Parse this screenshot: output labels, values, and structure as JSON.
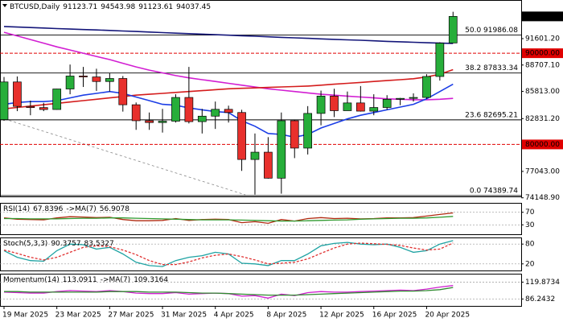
{
  "chart_data": [
    {
      "type": "candlestick",
      "title": "BTCUSD,Daily",
      "categories": [
        "19 Mar 2025",
        null,
        null,
        null,
        "23 Mar 2025",
        null,
        null,
        null,
        "27 Mar 2025",
        null,
        null,
        null,
        "31 Mar 2025",
        null,
        null,
        null,
        "4 Apr 2025",
        null,
        null,
        null,
        "8 Apr 2025",
        null,
        null,
        null,
        "12 Apr 2025",
        null,
        null,
        null,
        "16 Apr 2025",
        null,
        null,
        null,
        "20 Apr 2025",
        null,
        null
      ],
      "open": [
        82720,
        86850,
        84170,
        84040,
        83830,
        86080,
        87500,
        87400,
        86900,
        87230,
        84350,
        82600,
        82400,
        82550,
        85150,
        82500,
        83100,
        83850,
        83500,
        78350,
        79150,
        76300,
        82600,
        79600,
        83400,
        85300,
        83700,
        84550,
        83650,
        84050,
        84950,
        85050,
        85150,
        87450,
        91123.71
      ],
      "high": [
        87400,
        87450,
        84800,
        84560,
        86100,
        88760,
        88500,
        88300,
        87800,
        87500,
        84600,
        83500,
        83900,
        85500,
        88500,
        83900,
        84700,
        84250,
        83800,
        81200,
        80800,
        83500,
        82700,
        84200,
        85900,
        86100,
        85800,
        86400,
        85500,
        85400,
        85100,
        85600,
        87700,
        91200,
        94543.98
      ],
      "low": [
        82600,
        83650,
        83200,
        83650,
        83800,
        85500,
        86300,
        85870,
        85800,
        83600,
        81600,
        81600,
        81300,
        82400,
        82300,
        81200,
        81700,
        82400,
        77100,
        74500,
        76250,
        74600,
        78500,
        78900,
        82100,
        83000,
        83700,
        83600,
        83200,
        83800,
        84300,
        84700,
        85000,
        87000,
        91123.61
      ],
      "close": [
        86850,
        84170,
        84040,
        83830,
        86080,
        87500,
        87400,
        86900,
        87230,
        84350,
        82600,
        82400,
        82550,
        85150,
        82500,
        83100,
        83850,
        83500,
        78350,
        79150,
        76300,
        82600,
        79600,
        83400,
        85300,
        83700,
        84550,
        83650,
        84050,
        84950,
        85050,
        85150,
        87450,
        91100,
        94037.45
      ],
      "up_color": "#27ae3a",
      "down_color": "#e8302c",
      "overlays": [
        {
          "color": "#14167a",
          "values": [
            92930,
            92870,
            92820,
            92760,
            92700,
            92650,
            92600,
            92550,
            92500,
            92440,
            92380,
            92320,
            92260,
            92200,
            92150,
            92090,
            92030,
            91980,
            91920,
            91860,
            91800,
            91740,
            91690,
            91630,
            91570,
            91520,
            91470,
            91420,
            91360,
            91300,
            91250,
            91200,
            91150,
            91100,
            91080
          ]
        },
        {
          "color": "#d21ed2",
          "values": [
            92300,
            91900,
            91500,
            91100,
            90700,
            90350,
            90000,
            89650,
            89300,
            88900,
            88500,
            88150,
            87850,
            87550,
            87300,
            87100,
            86900,
            86700,
            86500,
            86300,
            86100,
            85950,
            85800,
            85650,
            85500,
            85400,
            85300,
            85200,
            85100,
            85000,
            84950,
            84900,
            84900,
            84950,
            85050
          ]
        },
        {
          "color": "#d41c1c",
          "values": [
            83900,
            84050,
            84200,
            84350,
            84500,
            84650,
            84800,
            84950,
            85100,
            85250,
            85400,
            85500,
            85600,
            85700,
            85800,
            85900,
            86000,
            86100,
            86150,
            86200,
            86250,
            86300,
            86350,
            86400,
            86500,
            86600,
            86700,
            86800,
            86900,
            87000,
            87100,
            87200,
            87400,
            87700,
            88200
          ]
        },
        {
          "color": "#1c3ee6",
          "values": [
            84400,
            84600,
            84700,
            84700,
            84800,
            85100,
            85400,
            85600,
            85800,
            85600,
            85200,
            84800,
            84400,
            84300,
            84000,
            83800,
            83600,
            83500,
            82600,
            82000,
            81200,
            81100,
            80800,
            81100,
            81800,
            82300,
            82800,
            83200,
            83500,
            83800,
            84100,
            84400,
            85000,
            85800,
            86600
          ]
        }
      ],
      "levels": [
        {
          "value": 90000,
          "label": "90000.00"
        },
        {
          "value": 80000,
          "label": "80000.00"
        }
      ],
      "level_color": "#e00000",
      "fibs": [
        {
          "value": 91986.08,
          "label": "50.0 91986.08"
        },
        {
          "value": 87833.34,
          "label": "38.2 87833.34"
        },
        {
          "value": 82695.21,
          "label": "23.6 82695.21"
        },
        {
          "value": 74389.74,
          "label": "0.0 74389.74"
        }
      ],
      "ylim": [
        74300,
        95835
      ],
      "yticks": [
        {
          "value": 91601.2,
          "label": "91601.20"
        },
        {
          "value": 88707.1,
          "label": "88707.10"
        },
        {
          "value": 85813,
          "label": "85813.00"
        },
        {
          "value": 82831.2,
          "label": "82831.20"
        },
        {
          "value": 77043,
          "label": "77043.00"
        },
        {
          "value": 74148.9,
          "label": "74148.90"
        }
      ]
    },
    {
      "type": "line",
      "title": "RSI(14)",
      "ylim": [
        0,
        100
      ],
      "yticks": [
        30,
        70
      ],
      "series": [
        {
          "color": "#b02a10",
          "values": [
            52,
            48,
            47,
            46,
            52,
            56,
            55,
            53,
            54,
            47,
            43,
            43,
            44,
            50,
            44,
            47,
            48,
            47,
            37,
            40,
            35,
            47,
            42,
            50,
            53,
            50,
            51,
            49,
            50,
            52,
            52,
            53,
            58,
            63,
            67.8396
          ]
        },
        {
          "name": "->MA(7)",
          "color": "#2f9a2f",
          "values": [
            50,
            50,
            49,
            49,
            49,
            50,
            51,
            51,
            52,
            52,
            51,
            50,
            49,
            48,
            47,
            46,
            46,
            46,
            45,
            44,
            43,
            42,
            42,
            43,
            44,
            45,
            46,
            48,
            49,
            50,
            51,
            51,
            52,
            54,
            56.9078
          ]
        }
      ]
    },
    {
      "type": "line",
      "title": "Stoch(5,3,3)",
      "ylim": [
        0,
        100
      ],
      "yticks": [
        20,
        80
      ],
      "series": [
        {
          "color": "#1fa3a3",
          "values": [
            60,
            40,
            30,
            28,
            60,
            80,
            78,
            65,
            70,
            50,
            25,
            15,
            12,
            30,
            40,
            45,
            55,
            50,
            22,
            20,
            15,
            30,
            30,
            50,
            75,
            82,
            85,
            80,
            78,
            80,
            70,
            55,
            60,
            80,
            90.3757
          ]
        },
        {
          "color": "#e03030",
          "dash": true,
          "values": [
            62,
            52,
            40,
            32,
            40,
            55,
            70,
            75,
            72,
            62,
            48,
            30,
            18,
            18,
            26,
            38,
            46,
            50,
            42,
            32,
            20,
            22,
            25,
            35,
            52,
            68,
            80,
            83,
            81,
            79,
            76,
            68,
            62,
            65,
            83.5327
          ]
        }
      ]
    },
    {
      "type": "line",
      "title": "Momentum(14)",
      "ylim": [
        72.5,
        136.7
      ],
      "yticks": [
        119.8734,
        86.2432
      ],
      "series": [
        {
          "color": "#d020d0",
          "values": [
            100,
            99,
            98,
            98,
            101,
            103,
            102,
            101,
            103,
            101,
            98,
            97,
            97,
            99,
            96,
            97,
            98,
            97,
            92,
            93,
            88,
            96,
            93,
            99,
            101,
            100,
            100,
            101,
            102,
            103,
            104,
            103,
            106,
            110,
            113.0911
          ]
        },
        {
          "name": "->MA(7)",
          "color": "#2f8a2f",
          "values": [
            101,
            101,
            100,
            100,
            100,
            100,
            100,
            100,
            101,
            101,
            101,
            100,
            100,
            100,
            99,
            98,
            98,
            97,
            96,
            95,
            94,
            94,
            94,
            95,
            96,
            97,
            98,
            99,
            100,
            101,
            102,
            102,
            103,
            105,
            109.3164
          ]
        }
      ]
    }
  ]
}
